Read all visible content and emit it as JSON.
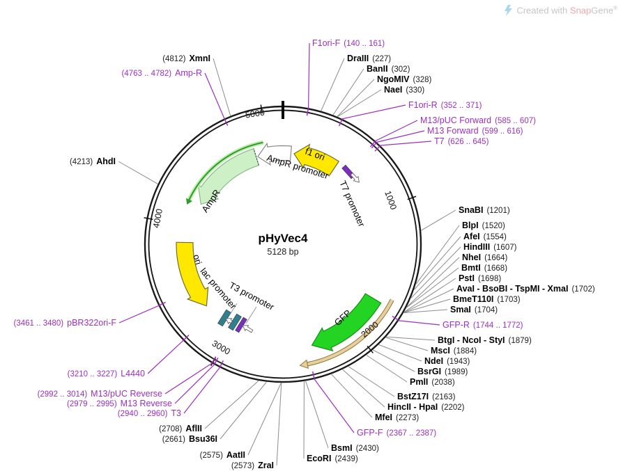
{
  "plasmid": {
    "name": "pHyVec4",
    "size": "5128 bp",
    "length_bp": 5128
  },
  "watermark": {
    "text_prefix": "Created with ",
    "brand_snap": "Snap",
    "brand_gene": "Gene",
    "registered": "®"
  },
  "ticks": [
    {
      "label": "1000",
      "bp": 1000
    },
    {
      "label": "2000",
      "bp": 2000
    },
    {
      "label": "3000",
      "bp": 3000
    },
    {
      "label": "4000",
      "bp": 4000
    },
    {
      "label": "5000",
      "bp": 5000
    }
  ],
  "features": [
    {
      "label": "f1 ori",
      "color": "#ffe800"
    },
    {
      "label": "AmpR promoter",
      "color": "#ffffff"
    },
    {
      "label": "AmpR",
      "color": "#cdf0c6"
    },
    {
      "label": "T7 promoter",
      "color": "#7b2fbe"
    },
    {
      "label": "ori",
      "color": "#ffe800"
    },
    {
      "label": "lac promoter",
      "color": "#2f7f8f"
    },
    {
      "label": "T3 promoter",
      "color": "#ffffff"
    },
    {
      "label": "GFP",
      "color": "#23d423"
    }
  ],
  "sites": [
    {
      "name": "F1ori-F",
      "pos": "(140 .. 161)",
      "kind": "primer",
      "side": "right"
    },
    {
      "name": "DraIII",
      "pos": "(227)",
      "kind": "enzyme",
      "side": "right"
    },
    {
      "name": "BanII",
      "pos": "(302)",
      "kind": "enzyme",
      "side": "right"
    },
    {
      "name": "NgoMIV",
      "pos": "(328)",
      "kind": "enzyme",
      "side": "right"
    },
    {
      "name": "NaeI",
      "pos": "(330)",
      "kind": "enzyme",
      "side": "right"
    },
    {
      "name": "F1ori-R",
      "pos": "(352 .. 371)",
      "kind": "primer",
      "side": "right"
    },
    {
      "name": "M13/pUC Forward",
      "pos": "(585 .. 607)",
      "kind": "primer",
      "side": "right"
    },
    {
      "name": "M13 Forward",
      "pos": "(599 .. 616)",
      "kind": "primer",
      "side": "right"
    },
    {
      "name": "T7",
      "pos": "(626 .. 645)",
      "kind": "primer",
      "side": "right"
    },
    {
      "name": "SnaBI",
      "pos": "(1201)",
      "kind": "enzyme",
      "side": "right"
    },
    {
      "name": "BlpI",
      "pos": "(1520)",
      "kind": "enzyme",
      "side": "right"
    },
    {
      "name": "AfeI",
      "pos": "(1554)",
      "kind": "enzyme",
      "side": "right"
    },
    {
      "name": "HindIII",
      "pos": "(1607)",
      "kind": "enzyme",
      "side": "right"
    },
    {
      "name": "NheI",
      "pos": "(1664)",
      "kind": "enzyme",
      "side": "right"
    },
    {
      "name": "BmtI",
      "pos": "(1668)",
      "kind": "enzyme",
      "side": "right"
    },
    {
      "name": "PstI",
      "pos": "(1698)",
      "kind": "enzyme",
      "side": "right"
    },
    {
      "name": "AvaI - BsoBI - TspMI - XmaI",
      "pos": "(1702)",
      "kind": "enzyme",
      "side": "right"
    },
    {
      "name": "BmeT110I",
      "pos": "(1703)",
      "kind": "enzyme",
      "side": "right"
    },
    {
      "name": "SmaI",
      "pos": "(1704)",
      "kind": "enzyme",
      "side": "right"
    },
    {
      "name": "GFP-R",
      "pos": "(1744 .. 1772)",
      "kind": "primer",
      "side": "right"
    },
    {
      "name": "BtgI - NcoI - StyI",
      "pos": "(1879)",
      "kind": "enzyme",
      "side": "right"
    },
    {
      "name": "MscI",
      "pos": "(1884)",
      "kind": "enzyme",
      "side": "right"
    },
    {
      "name": "NdeI",
      "pos": "(1943)",
      "kind": "enzyme",
      "side": "right"
    },
    {
      "name": "BsrGI",
      "pos": "(1989)",
      "kind": "enzyme",
      "side": "right"
    },
    {
      "name": "PmlI",
      "pos": "(2038)",
      "kind": "enzyme",
      "side": "right"
    },
    {
      "name": "BstZ17I",
      "pos": "(2163)",
      "kind": "enzyme",
      "side": "right"
    },
    {
      "name": "HincII - HpaI",
      "pos": "(2202)",
      "kind": "enzyme",
      "side": "right"
    },
    {
      "name": "MfeI",
      "pos": "(2273)",
      "kind": "enzyme",
      "side": "right"
    },
    {
      "name": "GFP-F",
      "pos": "(2367 .. 2387)",
      "kind": "primer",
      "side": "right"
    },
    {
      "name": "BsmI",
      "pos": "(2430)",
      "kind": "enzyme",
      "side": "right"
    },
    {
      "name": "EcoRI",
      "pos": "(2439)",
      "kind": "enzyme",
      "side": "right"
    },
    {
      "name": "ZraI",
      "pos": "(2573)",
      "kind": "enzyme",
      "side": "left"
    },
    {
      "name": "AatII",
      "pos": "(2575)",
      "kind": "enzyme",
      "side": "left"
    },
    {
      "name": "Bsu36I",
      "pos": "(2661)",
      "kind": "enzyme",
      "side": "left"
    },
    {
      "name": "AflII",
      "pos": "(2708)",
      "kind": "enzyme",
      "side": "left"
    },
    {
      "name": "T3",
      "pos": "(2940 .. 2960)",
      "kind": "primer",
      "side": "left"
    },
    {
      "name": "M13 Reverse",
      "pos": "(2979 .. 2995)",
      "kind": "primer",
      "side": "left"
    },
    {
      "name": "M13/pUC Reverse",
      "pos": "(2992 .. 3014)",
      "kind": "primer",
      "side": "left"
    },
    {
      "name": "L4440",
      "pos": "(3210 .. 3227)",
      "kind": "primer",
      "side": "left"
    },
    {
      "name": "pBR322ori-F",
      "pos": "(3461 .. 3480)",
      "kind": "primer",
      "side": "left"
    },
    {
      "name": "AhdI",
      "pos": "(4213)",
      "kind": "enzyme",
      "side": "left"
    },
    {
      "name": "Amp-R",
      "pos": "(4763 .. 4782)",
      "kind": "primer",
      "side": "left"
    },
    {
      "name": "XmnI",
      "pos": "(4812)",
      "kind": "enzyme",
      "side": "left"
    }
  ]
}
